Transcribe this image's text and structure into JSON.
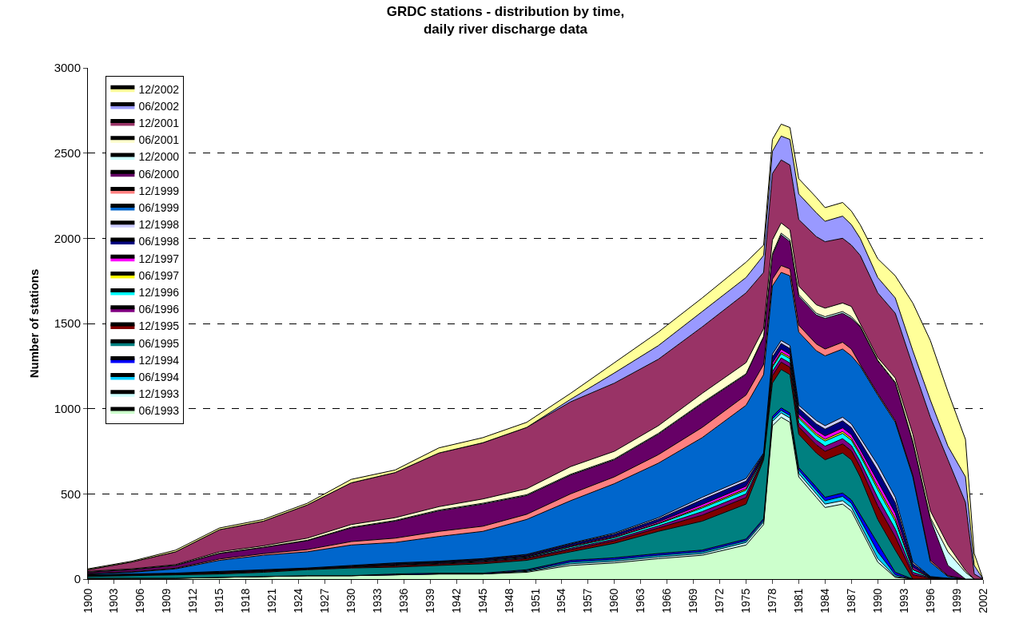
{
  "chart_data": {
    "type": "area",
    "stacked": true,
    "title": "GRDC stations - distribution by time,\ndaily river discharge data",
    "ylabel": "Number of stations",
    "x": [
      1900,
      1905,
      1910,
      1915,
      1920,
      1925,
      1930,
      1935,
      1940,
      1945,
      1950,
      1955,
      1960,
      1965,
      1970,
      1975,
      1977,
      1978,
      1979,
      1980,
      1981,
      1983,
      1984,
      1986,
      1987,
      1988,
      1990,
      1992,
      1994,
      1996,
      1998,
      2000,
      2001,
      2002
    ],
    "xlim": [
      1900,
      2002
    ],
    "xticks": [
      1900,
      1903,
      1906,
      1909,
      1912,
      1915,
      1918,
      1921,
      1924,
      1927,
      1930,
      1933,
      1936,
      1939,
      1942,
      1945,
      1948,
      1951,
      1954,
      1957,
      1960,
      1963,
      1966,
      1969,
      1972,
      1975,
      1978,
      1981,
      1984,
      1987,
      1990,
      1993,
      1996,
      1999,
      2002
    ],
    "ylim": [
      0,
      3000
    ],
    "yticks": [
      0,
      500,
      1000,
      1500,
      2000,
      2500,
      3000
    ],
    "grid": "y",
    "line_style": "solid",
    "legend": "top left",
    "series": [
      {
        "name": "06/1993",
        "color": "#ccffcc",
        "values": [
          5,
          5,
          5,
          10,
          15,
          20,
          20,
          25,
          30,
          30,
          40,
          80,
          95,
          120,
          140,
          200,
          320,
          900,
          950,
          920,
          600,
          480,
          420,
          440,
          400,
          300,
          100,
          10,
          0,
          0,
          0,
          0,
          0,
          0
        ]
      },
      {
        "name": "12/1993",
        "color": "#ccffff",
        "values": [
          0,
          0,
          0,
          0,
          0,
          0,
          0,
          0,
          0,
          0,
          5,
          10,
          10,
          10,
          10,
          15,
          15,
          25,
          25,
          25,
          20,
          20,
          20,
          20,
          20,
          20,
          20,
          5,
          0,
          0,
          0,
          0,
          0,
          0
        ]
      },
      {
        "name": "06/1994",
        "color": "#00ccff",
        "values": [
          0,
          0,
          0,
          0,
          0,
          0,
          0,
          0,
          0,
          0,
          5,
          10,
          10,
          10,
          10,
          10,
          10,
          15,
          15,
          15,
          20,
          20,
          20,
          25,
          25,
          30,
          40,
          10,
          0,
          0,
          0,
          0,
          0,
          0
        ]
      },
      {
        "name": "12/1994",
        "color": "#0000ff",
        "values": [
          0,
          0,
          0,
          0,
          0,
          0,
          0,
          5,
          5,
          5,
          5,
          10,
          10,
          10,
          10,
          10,
          10,
          15,
          15,
          15,
          15,
          20,
          20,
          20,
          20,
          30,
          50,
          15,
          0,
          0,
          0,
          0,
          0,
          0
        ]
      },
      {
        "name": "06/1995",
        "color": "#008080",
        "values": [
          10,
          15,
          20,
          20,
          25,
          35,
          45,
          40,
          45,
          55,
          55,
          50,
          85,
          130,
          170,
          205,
          345,
          195,
          225,
          225,
          195,
          200,
          220,
          235,
          235,
          220,
          140,
          130,
          0,
          0,
          0,
          0,
          0,
          0
        ]
      },
      {
        "name": "12/1995",
        "color": "#800000",
        "values": [
          4,
          4,
          4,
          5,
          5,
          4,
          5,
          8,
          8,
          9,
          10,
          13,
          15,
          20,
          35,
          38,
          10,
          43,
          43,
          43,
          43,
          48,
          50,
          53,
          53,
          58,
          80,
          78,
          25,
          5,
          2,
          0,
          0,
          0
        ]
      },
      {
        "name": "06/1996",
        "color": "#800080",
        "values": [
          1,
          1,
          1,
          2,
          2,
          1,
          2,
          4,
          4,
          5,
          5,
          8,
          9,
          12,
          21,
          22,
          6,
          25,
          25,
          25,
          25,
          28,
          30,
          31,
          31,
          34,
          48,
          46,
          15,
          2,
          1,
          0,
          0,
          0
        ]
      },
      {
        "name": "12/1996",
        "color": "#00ffff",
        "values": [
          1,
          1,
          1,
          2,
          2,
          1,
          2,
          4,
          4,
          5,
          5,
          8,
          9,
          12,
          21,
          22,
          6,
          25,
          25,
          25,
          25,
          28,
          30,
          31,
          31,
          34,
          48,
          46,
          15,
          2,
          1,
          0,
          0,
          0
        ]
      },
      {
        "name": "06/1997",
        "color": "#ffff00",
        "values": [
          0,
          0,
          0,
          0,
          0,
          0,
          0,
          0,
          0,
          0,
          1,
          2,
          3,
          4,
          7,
          8,
          2,
          9,
          9,
          9,
          9,
          10,
          10,
          11,
          11,
          12,
          16,
          16,
          5,
          0,
          0,
          0,
          0,
          0
        ]
      },
      {
        "name": "12/1997",
        "color": "#ff00ff",
        "values": [
          1,
          1,
          1,
          2,
          2,
          1,
          2,
          3,
          3,
          3,
          4,
          5,
          6,
          8,
          14,
          15,
          4,
          17,
          17,
          17,
          17,
          19,
          20,
          21,
          21,
          23,
          32,
          31,
          10,
          2,
          0,
          0,
          0,
          0
        ]
      },
      {
        "name": "06/1998",
        "color": "#000080",
        "values": [
          2,
          2,
          2,
          3,
          3,
          2,
          3,
          5,
          5,
          6,
          7,
          10,
          12,
          16,
          28,
          30,
          8,
          34,
          34,
          34,
          34,
          38,
          40,
          42,
          42,
          46,
          64,
          62,
          20,
          3,
          1,
          0,
          0,
          0
        ]
      },
      {
        "name": "12/1998",
        "color": "#ccccff",
        "values": [
          1,
          1,
          1,
          1,
          1,
          1,
          1,
          1,
          1,
          2,
          3,
          4,
          6,
          8,
          14,
          15,
          4,
          17,
          17,
          17,
          17,
          19,
          20,
          21,
          21,
          23,
          32,
          31,
          10,
          1,
          0,
          0,
          0,
          0
        ]
      },
      {
        "name": "06/1999",
        "color": "#0066cc",
        "values": [
          5,
          10,
          25,
          65,
          85,
          95,
          120,
          120,
          145,
          160,
          205,
          250,
          290,
          320,
          350,
          430,
          460,
          400,
          400,
          410,
          430,
          410,
          410,
          400,
          400,
          420,
          410,
          440,
          500,
          85,
          10,
          0,
          0,
          0
        ]
      },
      {
        "name": "12/1999",
        "color": "#ff8080",
        "values": [
          2,
          3,
          4,
          8,
          9,
          13,
          20,
          25,
          30,
          30,
          30,
          40,
          40,
          50,
          60,
          60,
          60,
          40,
          40,
          40,
          40,
          40,
          40,
          40,
          40,
          10,
          10,
          10,
          10,
          10,
          5,
          0,
          0,
          0
        ]
      },
      {
        "name": "06/2000",
        "color": "#660066",
        "values": [
          8,
          12,
          16,
          32,
          36,
          52,
          80,
          100,
          120,
          130,
          110,
          110,
          100,
          120,
          140,
          120,
          160,
          140,
          180,
          160,
          170,
          170,
          180,
          170,
          180,
          220,
          190,
          220,
          190,
          240,
          60,
          0,
          0,
          0
        ]
      },
      {
        "name": "12/2000",
        "color": "#ccffff",
        "values": [
          1,
          1,
          1,
          2,
          2,
          3,
          4,
          4,
          5,
          5,
          5,
          5,
          5,
          5,
          5,
          5,
          5,
          10,
          10,
          10,
          10,
          10,
          10,
          10,
          10,
          5,
          5,
          5,
          10,
          10,
          80,
          40,
          0,
          0
        ]
      },
      {
        "name": "06/2001",
        "color": "#ffffcc",
        "values": [
          4,
          4,
          4,
          8,
          8,
          12,
          16,
          16,
          20,
          25,
          35,
          45,
          45,
          45,
          55,
          65,
          45,
          80,
          60,
          60,
          50,
          50,
          50,
          50,
          60,
          15,
          15,
          25,
          40,
          40,
          40,
          10,
          0,
          0
        ]
      },
      {
        "name": "12/2001",
        "color": "#993366",
        "values": [
          10,
          40,
          75,
          130,
          145,
          195,
          245,
          265,
          315,
          330,
          360,
          380,
          400,
          390,
          390,
          410,
          330,
          390,
          370,
          380,
          390,
          400,
          390,
          380,
          360,
          400,
          380,
          380,
          400,
          550,
          500,
          400,
          30,
          0
        ]
      },
      {
        "name": "06/2002",
        "color": "#9999ff",
        "values": [
          0,
          0,
          0,
          0,
          0,
          0,
          0,
          0,
          0,
          0,
          0,
          15,
          60,
          80,
          90,
          90,
          100,
          130,
          140,
          150,
          150,
          140,
          120,
          130,
          120,
          100,
          90,
          90,
          90,
          100,
          80,
          150,
          50,
          0
        ]
      },
      {
        "name": "12/2002",
        "color": "#ffff99",
        "values": [
          5,
          5,
          10,
          10,
          10,
          10,
          20,
          15,
          30,
          30,
          30,
          35,
          60,
          80,
          80,
          90,
          60,
          70,
          70,
          70,
          90,
          90,
          80,
          80,
          80,
          80,
          110,
          130,
          280,
          350,
          320,
          220,
          70,
          0
        ]
      }
    ]
  }
}
